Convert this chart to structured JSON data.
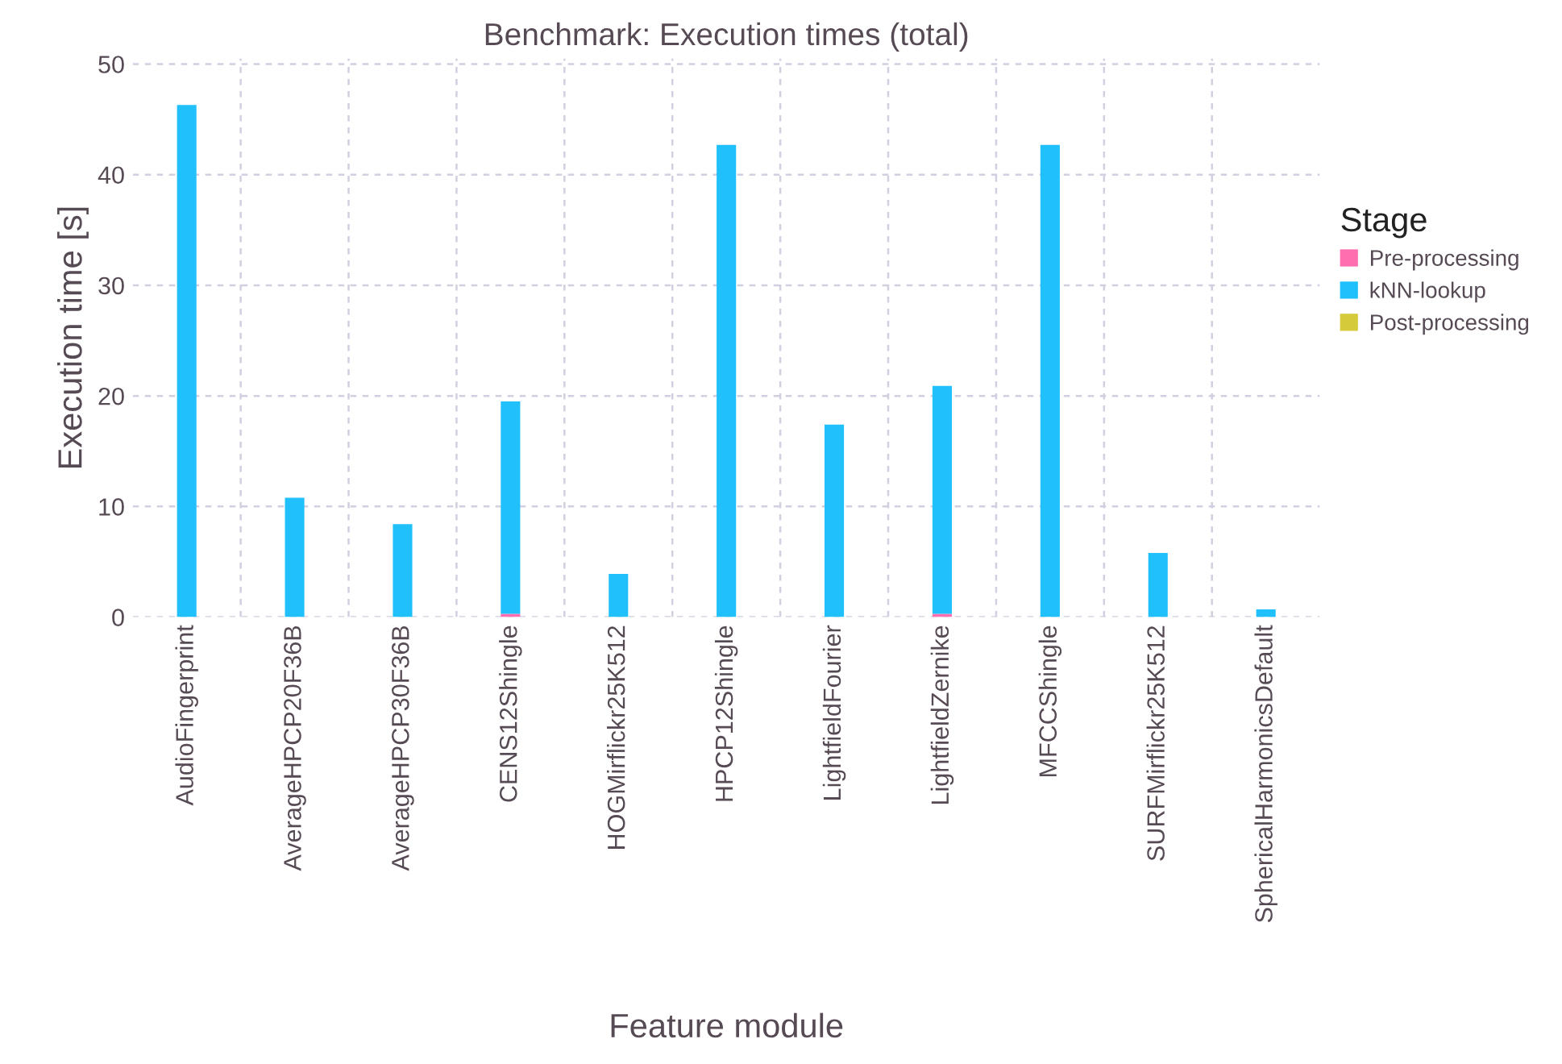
{
  "chart_data": {
    "type": "bar",
    "title": "Benchmark: Execution times (total)",
    "xlabel": "Feature module",
    "ylabel": "Execution time [s]",
    "legend_title": "Stage",
    "categories": [
      "AudioFingerprint",
      "AverageHPCP20F36B",
      "AverageHPCP30F36B",
      "CENS12Shingle",
      "HOGMirflickr25K512",
      "HPCP12Shingle",
      "LightfieldFourier",
      "LightfieldZernike",
      "MFCCShingle",
      "SURFMirflickr25K512",
      "SphericalHarmonicsDefault"
    ],
    "stacked": true,
    "series": [
      {
        "name": "Pre-processing",
        "color": "#ff6eaf",
        "values": [
          0,
          0,
          0,
          0.3,
          0,
          0,
          0,
          0.3,
          0,
          0,
          0
        ]
      },
      {
        "name": "kNN-lookup",
        "color": "#20c0fc",
        "values": [
          46.3,
          10.8,
          8.4,
          19.2,
          3.9,
          42.7,
          17.4,
          20.6,
          42.7,
          5.8,
          0.7
        ]
      },
      {
        "name": "Post-processing",
        "color": "#d4ca3a",
        "values": [
          0,
          0,
          0,
          0,
          0,
          0,
          0,
          0,
          0,
          0,
          0
        ]
      }
    ],
    "ylim": [
      0,
      50.5
    ],
    "yticks": [
      0,
      10,
      20,
      30,
      40,
      50
    ],
    "grid": true,
    "legend": "right"
  }
}
